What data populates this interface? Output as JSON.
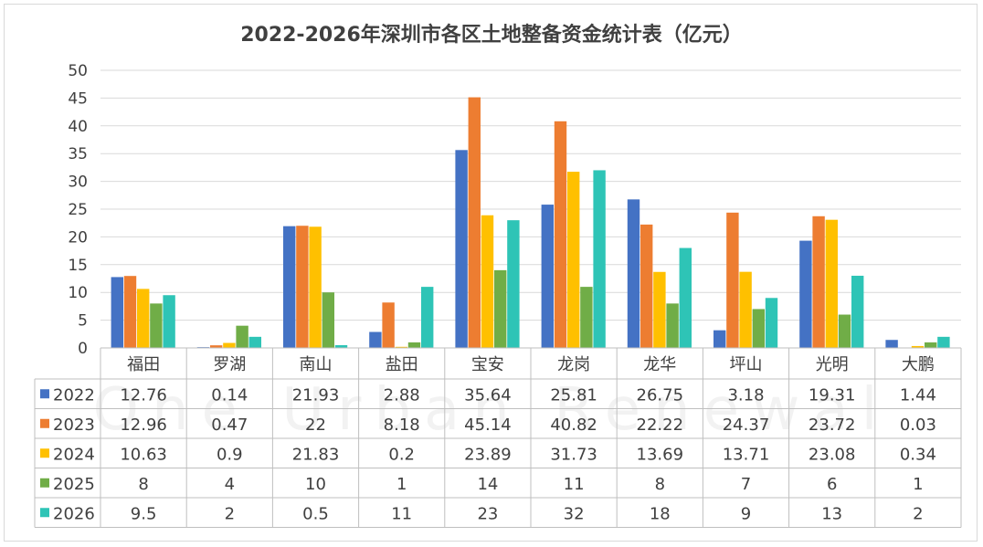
{
  "chart_data": {
    "type": "bar",
    "title": "2022-2026年深圳市各区土地整备资金统计表（亿元）",
    "categories": [
      "福田",
      "罗湖",
      "南山",
      "盐田",
      "宝安",
      "龙岗",
      "龙华",
      "坪山",
      "光明",
      "大鹏"
    ],
    "ylim": [
      0,
      50
    ],
    "yticks": [
      0,
      5,
      10,
      15,
      20,
      25,
      30,
      35,
      40,
      45,
      50
    ],
    "grid": true,
    "legend": "data-table",
    "series": [
      {
        "name": "2022",
        "color": "#4472c4",
        "values": [
          12.76,
          0.14,
          21.93,
          2.88,
          35.64,
          25.81,
          26.75,
          3.18,
          19.31,
          1.44
        ]
      },
      {
        "name": "2023",
        "color": "#ed7d31",
        "values": [
          12.96,
          0.47,
          22,
          8.18,
          45.14,
          40.82,
          22.22,
          24.37,
          23.72,
          0.03
        ]
      },
      {
        "name": "2024",
        "color": "#ffc000",
        "values": [
          10.63,
          0.9,
          21.83,
          0.2,
          23.89,
          31.73,
          13.69,
          13.71,
          23.08,
          0.34
        ]
      },
      {
        "name": "2025",
        "color": "#70ad47",
        "values": [
          8,
          4,
          10,
          1,
          14,
          11,
          8,
          7,
          6,
          1
        ]
      },
      {
        "name": "2026",
        "color": "#2ec4b6",
        "values": [
          9.5,
          2,
          0.5,
          11,
          23,
          32,
          18,
          9,
          13,
          2
        ]
      }
    ]
  },
  "watermark": {
    "text": "One Urban Renewal"
  }
}
